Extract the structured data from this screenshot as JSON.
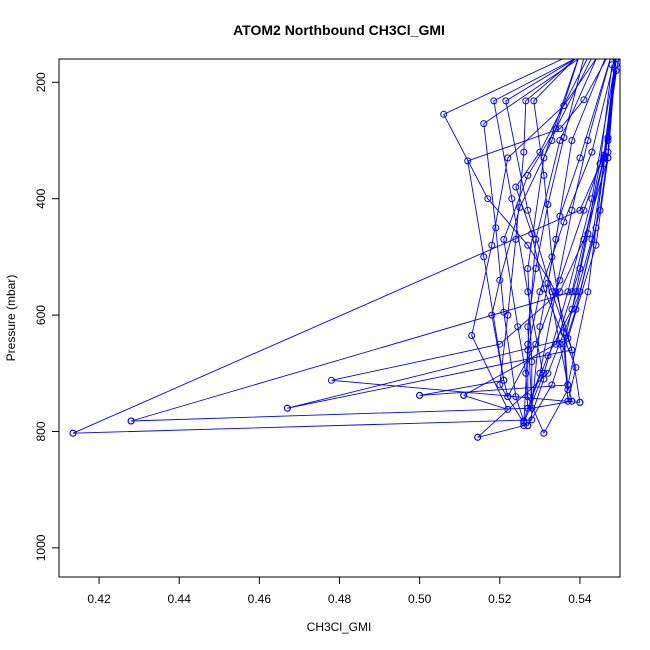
{
  "chart_data": {
    "type": "line",
    "title": "ATOM2 Northbound CH3Cl_GMI",
    "xlabel": "CH3Cl_GMI",
    "ylabel": "Pressure (mbar)",
    "xlim": [
      0.41,
      0.55
    ],
    "ylim": [
      1050,
      160
    ],
    "y_reversed": true,
    "xticks": [
      0.42,
      0.44,
      0.46,
      0.48,
      0.5,
      0.52,
      0.54
    ],
    "xtick_labels": [
      "0.42",
      "0.44",
      "0.46",
      "0.48",
      "0.50",
      "0.52",
      "0.54"
    ],
    "yticks": [
      200,
      400,
      600,
      800,
      1000
    ],
    "ytick_labels": [
      "200",
      "400",
      "600",
      "800",
      "1000"
    ],
    "grid": false,
    "legend": "none",
    "colors": {
      "series": "#0000ff",
      "axes": "#000000"
    },
    "marker": "open-circle",
    "series": [
      {
        "values": [
          [
            0.546,
            130
          ],
          [
            0.535,
            300
          ],
          [
            0.529,
            470
          ],
          [
            0.527,
            650
          ],
          [
            0.526,
            790
          ],
          [
            0.5145,
            810
          ]
        ]
      },
      {
        "values": [
          [
            0.5145,
            810
          ],
          [
            0.532,
            700
          ],
          [
            0.54,
            560
          ],
          [
            0.545,
            420
          ],
          [
            0.547,
            320
          ],
          [
            0.549,
            130
          ]
        ]
      },
      {
        "values": [
          [
            0.541,
            130
          ],
          [
            0.531,
            330
          ],
          [
            0.527,
            520
          ],
          [
            0.528,
            680
          ],
          [
            0.528,
            780
          ],
          [
            0.4135,
            803
          ]
        ]
      },
      {
        "values": [
          [
            0.4135,
            803
          ],
          [
            0.54,
            420
          ],
          [
            0.546,
            325
          ],
          [
            0.549,
            150
          ]
        ]
      },
      {
        "values": [
          [
            0.548,
            130
          ],
          [
            0.538,
            300
          ],
          [
            0.534,
            470
          ],
          [
            0.53,
            620
          ],
          [
            0.528,
            760
          ],
          [
            0.428,
            782
          ]
        ]
      },
      {
        "values": [
          [
            0.428,
            782
          ],
          [
            0.538,
            560
          ],
          [
            0.546,
            328
          ],
          [
            0.55,
            140
          ]
        ]
      },
      {
        "values": [
          [
            0.546,
            130
          ],
          [
            0.5215,
            232
          ],
          [
            0.527,
            420
          ],
          [
            0.533,
            560
          ],
          [
            0.538,
            660
          ],
          [
            0.467,
            760
          ]
        ]
      },
      {
        "values": [
          [
            0.467,
            760
          ],
          [
            0.537,
            640
          ],
          [
            0.544,
            480
          ],
          [
            0.547,
            330
          ],
          [
            0.549,
            150
          ]
        ]
      },
      {
        "values": [
          [
            0.545,
            130
          ],
          [
            0.506,
            255
          ],
          [
            0.517,
            400
          ],
          [
            0.527,
            480
          ],
          [
            0.534,
            560
          ],
          [
            0.538,
            660
          ],
          [
            0.54,
            750
          ]
        ]
      },
      {
        "values": [
          [
            0.54,
            750
          ],
          [
            0.478,
            712
          ],
          [
            0.52,
            650
          ],
          [
            0.535,
            560
          ],
          [
            0.541,
            470
          ],
          [
            0.547,
            330
          ],
          [
            0.549,
            160
          ]
        ]
      },
      {
        "values": [
          [
            0.549,
            130
          ],
          [
            0.541,
            230
          ],
          [
            0.535,
            280
          ],
          [
            0.512,
            335
          ],
          [
            0.516,
            500
          ],
          [
            0.521,
            712
          ],
          [
            0.5,
            738
          ]
        ]
      },
      {
        "values": [
          [
            0.5,
            738
          ],
          [
            0.537,
            720
          ],
          [
            0.542,
            560
          ],
          [
            0.546,
            340
          ],
          [
            0.549,
            160
          ]
        ]
      },
      {
        "values": [
          [
            0.547,
            130
          ],
          [
            0.536,
            240
          ],
          [
            0.522,
            330
          ],
          [
            0.518,
            480
          ],
          [
            0.513,
            635
          ],
          [
            0.522,
            762
          ],
          [
            0.511,
            738
          ]
        ]
      },
      {
        "values": [
          [
            0.511,
            738
          ],
          [
            0.534,
            650
          ],
          [
            0.54,
            520
          ],
          [
            0.545,
            340
          ],
          [
            0.548,
            170
          ]
        ]
      },
      {
        "values": [
          [
            0.546,
            130
          ],
          [
            0.516,
            271
          ],
          [
            0.519,
            450
          ],
          [
            0.521,
            595
          ],
          [
            0.524,
            740
          ],
          [
            0.526,
            782
          ]
        ]
      },
      {
        "values": [
          [
            0.526,
            782
          ],
          [
            0.53,
            700
          ],
          [
            0.534,
            560
          ],
          [
            0.538,
            420
          ],
          [
            0.542,
            300
          ],
          [
            0.548,
            150
          ]
        ]
      },
      {
        "values": [
          [
            0.547,
            130
          ],
          [
            0.5185,
            232
          ],
          [
            0.523,
            400
          ],
          [
            0.527,
            560
          ],
          [
            0.531,
            710
          ],
          [
            0.527,
            790
          ]
        ]
      },
      {
        "values": [
          [
            0.527,
            790
          ],
          [
            0.533,
            720
          ],
          [
            0.539,
            590
          ],
          [
            0.544,
            450
          ],
          [
            0.549,
            170
          ]
        ]
      },
      {
        "values": [
          [
            0.544,
            130
          ],
          [
            0.5265,
            232
          ],
          [
            0.526,
            320
          ],
          [
            0.524,
            470
          ],
          [
            0.522,
            600
          ],
          [
            0.52,
            720
          ],
          [
            0.526,
            785
          ]
        ]
      },
      {
        "values": [
          [
            0.526,
            785
          ],
          [
            0.531,
            700
          ],
          [
            0.537,
            560
          ],
          [
            0.543,
            400
          ],
          [
            0.549,
            160
          ]
        ]
      },
      {
        "values": [
          [
            0.543,
            130
          ],
          [
            0.5285,
            232
          ],
          [
            0.531,
            360
          ],
          [
            0.533,
            500
          ],
          [
            0.536,
            630
          ],
          [
            0.537,
            728
          ],
          [
            0.531,
            803
          ]
        ]
      },
      {
        "values": [
          [
            0.531,
            803
          ],
          [
            0.527,
            740
          ],
          [
            0.527,
            660
          ],
          [
            0.53,
            560
          ],
          [
            0.536,
            440
          ],
          [
            0.543,
            320
          ],
          [
            0.549,
            150
          ]
        ]
      },
      {
        "values": [
          [
            0.541,
            130
          ],
          [
            0.533,
            300
          ],
          [
            0.525,
            415
          ],
          [
            0.52,
            540
          ],
          [
            0.518,
            600
          ],
          [
            0.521,
            712
          ],
          [
            0.522,
            740
          ]
        ]
      },
      {
        "values": [
          [
            0.522,
            740
          ],
          [
            0.529,
            650
          ],
          [
            0.535,
            540
          ],
          [
            0.541,
            420
          ],
          [
            0.547,
            300
          ],
          [
            0.549,
            140
          ]
        ]
      },
      {
        "values": [
          [
            0.542,
            130
          ],
          [
            0.536,
            295
          ],
          [
            0.532,
            410
          ],
          [
            0.529,
            520
          ],
          [
            0.527,
            620
          ],
          [
            0.528,
            760
          ],
          [
            0.538,
            748
          ]
        ]
      },
      {
        "values": [
          [
            0.538,
            748
          ],
          [
            0.537,
            720
          ],
          [
            0.535,
            650
          ],
          [
            0.532,
            545
          ],
          [
            0.535,
            430
          ],
          [
            0.54,
            330
          ],
          [
            0.548,
            150
          ]
        ]
      },
      {
        "values": [
          [
            0.544,
            130
          ],
          [
            0.53,
            320
          ],
          [
            0.524,
            380
          ],
          [
            0.528,
            460
          ],
          [
            0.531,
            555
          ],
          [
            0.539,
            690
          ],
          [
            0.537,
            748
          ]
        ]
      },
      {
        "values": [
          [
            0.537,
            748
          ],
          [
            0.536,
            650
          ],
          [
            0.539,
            560
          ],
          [
            0.542,
            460
          ],
          [
            0.546,
            330
          ],
          [
            0.549,
            160
          ]
        ]
      },
      {
        "values": [
          [
            0.545,
            130
          ],
          [
            0.534,
            280
          ],
          [
            0.527,
            360
          ],
          [
            0.521,
            470
          ],
          [
            0.5245,
            620
          ],
          [
            0.5265,
            700
          ],
          [
            0.527,
            760
          ]
        ]
      },
      {
        "values": [
          [
            0.527,
            760
          ],
          [
            0.532,
            670
          ],
          [
            0.538,
            590
          ],
          [
            0.543,
            470
          ],
          [
            0.547,
            295
          ],
          [
            0.549,
            180
          ]
        ]
      }
    ]
  }
}
